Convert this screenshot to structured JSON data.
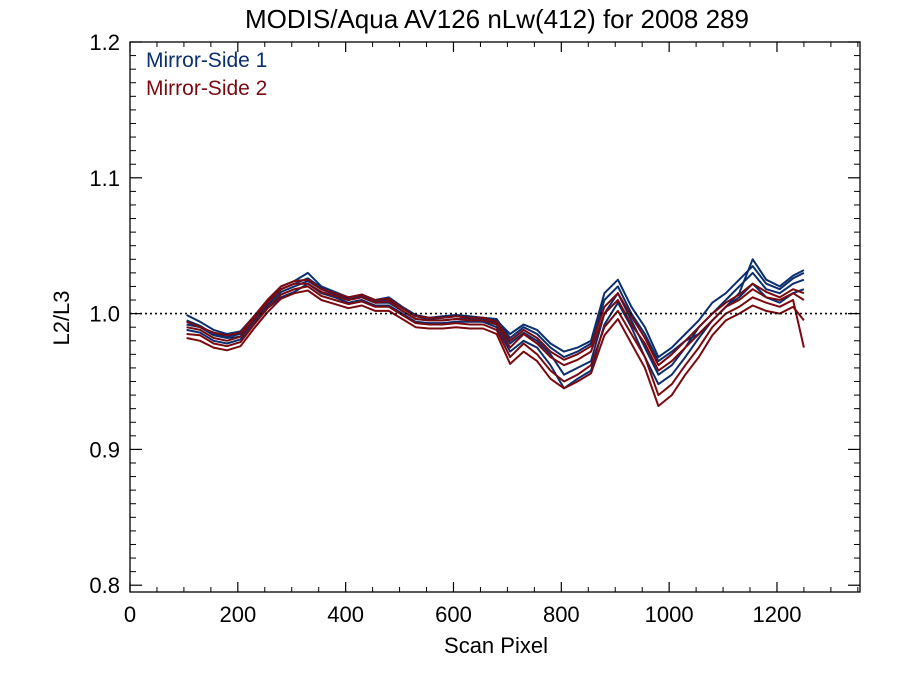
{
  "chart_data": {
    "type": "line",
    "title": "MODIS/Aqua AV126 nLw(412) for 2008 289",
    "xlabel": "Scan Pixel",
    "ylabel": "L2/L3",
    "xlim": [
      0,
      1354
    ],
    "ylim": [
      0.795,
      1.2
    ],
    "xticks": [
      "0",
      "200",
      "400",
      "600",
      "800",
      "1000",
      "1200"
    ],
    "xtick_values": [
      0,
      200,
      400,
      600,
      800,
      1000,
      1200
    ],
    "xminor_values": [
      50,
      100,
      150,
      250,
      300,
      350,
      450,
      500,
      550,
      650,
      700,
      750,
      850,
      900,
      950,
      1050,
      1100,
      1150,
      1250,
      1300,
      1350
    ],
    "yticks": [
      "0.8",
      "0.9",
      "1.0",
      "1.1",
      "1.2"
    ],
    "ytick_values": [
      0.8,
      0.9,
      1.0,
      1.1,
      1.2
    ],
    "yminor_values": [
      0.81,
      0.82,
      0.83,
      0.84,
      0.85,
      0.86,
      0.87,
      0.88,
      0.89,
      0.91,
      0.92,
      0.93,
      0.94,
      0.95,
      0.96,
      0.97,
      0.98,
      0.99,
      1.01,
      1.02,
      1.03,
      1.04,
      1.05,
      1.06,
      1.07,
      1.08,
      1.09,
      1.11,
      1.12,
      1.13,
      1.14,
      1.15,
      1.16,
      1.17,
      1.18,
      1.19
    ],
    "reference_line": {
      "y": 1.0,
      "style": "dotted"
    },
    "legend_position": "top-left",
    "grid": false,
    "x": [
      105,
      130,
      155,
      180,
      205,
      230,
      255,
      280,
      305,
      330,
      355,
      380,
      405,
      430,
      455,
      480,
      505,
      530,
      555,
      580,
      605,
      630,
      655,
      680,
      705,
      730,
      755,
      780,
      805,
      830,
      855,
      880,
      905,
      930,
      955,
      980,
      1005,
      1030,
      1055,
      1080,
      1105,
      1130,
      1155,
      1180,
      1205,
      1230,
      1250
    ],
    "series": [
      {
        "name": "Mirror-Side 1",
        "color": "#0b2f6e",
        "lines": [
          [
            0.999,
            0.994,
            0.988,
            0.985,
            0.987,
            0.998,
            1.01,
            1.02,
            1.024,
            1.03,
            1.02,
            1.016,
            1.012,
            1.014,
            1.01,
            1.012,
            1.005,
            0.999,
            0.997,
            0.998,
            0.999,
            0.998,
            0.997,
            0.996,
            0.982,
            0.99,
            0.985,
            0.975,
            0.968,
            0.972,
            0.978,
            1.01,
            1.02,
            1.0,
            0.985,
            0.965,
            0.972,
            0.98,
            0.985,
            0.995,
            1.005,
            1.015,
            1.04,
            1.025,
            1.02,
            1.028,
            1.032
          ],
          [
            0.992,
            0.99,
            0.984,
            0.982,
            0.983,
            0.994,
            1.006,
            1.016,
            1.02,
            1.024,
            1.018,
            1.014,
            1.01,
            1.012,
            1.008,
            1.008,
            1.002,
            0.996,
            0.995,
            0.995,
            0.996,
            0.996,
            0.995,
            0.993,
            0.978,
            0.986,
            0.98,
            0.97,
            0.955,
            0.96,
            0.965,
            1.0,
            1.015,
            0.995,
            0.975,
            0.955,
            0.962,
            0.975,
            0.99,
            1.0,
            1.01,
            1.02,
            1.03,
            1.018,
            1.015,
            1.022,
            1.025
          ],
          [
            0.988,
            0.986,
            0.98,
            0.978,
            0.981,
            0.992,
            1.004,
            1.012,
            1.016,
            1.022,
            1.015,
            1.012,
            1.008,
            1.01,
            1.006,
            1.006,
            1.0,
            0.994,
            0.993,
            0.993,
            0.994,
            0.994,
            0.994,
            0.99,
            0.972,
            0.98,
            0.975,
            0.962,
            0.945,
            0.952,
            0.958,
            0.992,
            1.008,
            0.99,
            0.968,
            0.948,
            0.955,
            0.968,
            0.982,
            0.995,
            1.005,
            1.012,
            1.022,
            1.012,
            1.008,
            1.015,
            1.018
          ],
          [
            0.995,
            0.991,
            0.985,
            0.983,
            0.985,
            0.995,
            1.008,
            1.018,
            1.022,
            1.026,
            1.019,
            1.015,
            1.011,
            1.013,
            1.009,
            1.01,
            1.004,
            0.998,
            0.996,
            0.997,
            0.998,
            0.997,
            0.996,
            0.995,
            0.985,
            0.992,
            0.988,
            0.978,
            0.972,
            0.975,
            0.98,
            1.015,
            1.025,
            1.005,
            0.99,
            0.968,
            0.975,
            0.985,
            0.995,
            1.008,
            1.015,
            1.025,
            1.035,
            1.022,
            1.018,
            1.026,
            1.03
          ]
        ]
      },
      {
        "name": "Mirror-Side 2",
        "color": "#7a0a10",
        "lines": [
          [
            0.99,
            0.988,
            0.982,
            0.98,
            0.983,
            0.996,
            1.008,
            1.018,
            1.022,
            1.022,
            1.016,
            1.013,
            1.01,
            1.012,
            1.008,
            1.009,
            1.002,
            0.996,
            0.995,
            0.995,
            0.996,
            0.995,
            0.995,
            0.992,
            0.975,
            0.985,
            0.978,
            0.968,
            0.962,
            0.966,
            0.972,
            1.0,
            1.01,
            0.992,
            0.978,
            0.958,
            0.965,
            0.975,
            0.985,
            0.995,
            1.005,
            1.01,
            1.018,
            1.012,
            1.01,
            1.015,
            1.01
          ],
          [
            0.985,
            0.984,
            0.978,
            0.976,
            0.979,
            0.992,
            1.004,
            1.014,
            1.018,
            1.02,
            1.013,
            1.01,
            1.007,
            1.009,
            1.005,
            1.005,
            0.999,
            0.993,
            0.992,
            0.992,
            0.993,
            0.992,
            0.992,
            0.988,
            0.968,
            0.978,
            0.97,
            0.958,
            0.95,
            0.955,
            0.962,
            0.99,
            1.002,
            0.985,
            0.968,
            0.94,
            0.948,
            0.962,
            0.975,
            0.99,
            1.0,
            1.005,
            1.012,
            1.008,
            1.005,
            1.01,
            0.975
          ],
          [
            0.994,
            0.99,
            0.986,
            0.984,
            0.986,
            0.998,
            1.01,
            1.02,
            1.024,
            1.025,
            1.018,
            1.015,
            1.012,
            1.014,
            1.01,
            1.011,
            1.004,
            0.998,
            0.997,
            0.997,
            0.998,
            0.997,
            0.997,
            0.994,
            0.98,
            0.988,
            0.982,
            0.972,
            0.966,
            0.97,
            0.976,
            1.005,
            1.015,
            0.998,
            0.982,
            0.962,
            0.97,
            0.98,
            0.99,
            1.0,
            1.008,
            1.014,
            1.022,
            1.016,
            1.012,
            1.018,
            1.015
          ],
          [
            0.982,
            0.98,
            0.975,
            0.973,
            0.976,
            0.989,
            1.001,
            1.011,
            1.015,
            1.017,
            1.01,
            1.007,
            1.004,
            1.006,
            1.002,
            1.002,
            0.996,
            0.99,
            0.989,
            0.989,
            0.99,
            0.989,
            0.989,
            0.985,
            0.963,
            0.972,
            0.965,
            0.952,
            0.945,
            0.95,
            0.956,
            0.984,
            0.996,
            0.978,
            0.96,
            0.932,
            0.94,
            0.955,
            0.968,
            0.984,
            0.995,
            1.0,
            1.006,
            1.002,
            1.0,
            1.005,
            0.995
          ]
        ]
      }
    ]
  }
}
